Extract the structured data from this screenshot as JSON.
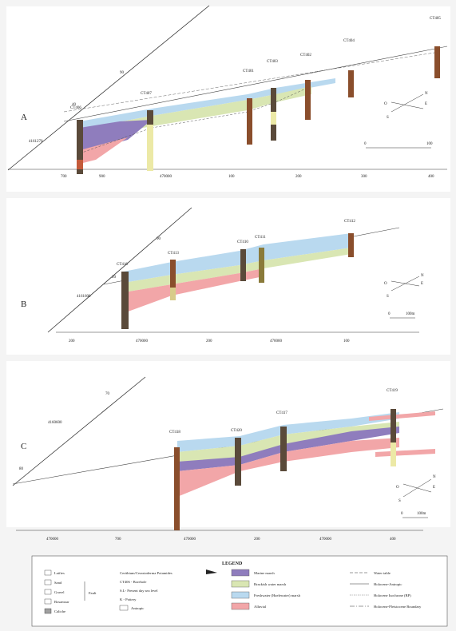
{
  "colors": {
    "marine_marsh": "#8f7dbd",
    "brackish_marsh": "#d9e6b3",
    "freshwater_marsh": "#b9d9ef",
    "alluvial": "#f2a6a8",
    "clay_dark": "#5a4a3a",
    "clay_brown": "#8a4e2c",
    "silt_tan": "#d8cc8a",
    "sand_yellow": "#ece9a6"
  },
  "sections": [
    {
      "id": "A",
      "label": "A",
      "boreholes": [
        "CT406",
        "CT407",
        "CT401",
        "CT403",
        "CT402",
        "CT404",
        "CT405"
      ],
      "axis_ticks": [
        "700",
        "900",
        "470000",
        "100",
        "200",
        "300",
        "400"
      ],
      "labels": [
        "90",
        "4161270",
        "40"
      ],
      "scale_ticks": [
        "0",
        "100"
      ],
      "compass": [
        "O",
        "E",
        "S",
        "N"
      ]
    },
    {
      "id": "B",
      "label": "B",
      "boreholes": [
        "CT416",
        "CT413",
        "CT410",
        "CT411",
        "CT412"
      ],
      "axis_ticks": [
        "200",
        "470000",
        "200",
        "470000",
        "100"
      ],
      "labels": [
        "90",
        "4161600",
        "20"
      ],
      "scale_ticks": [
        "0",
        "100m"
      ],
      "compass": [
        "O",
        "E",
        "S",
        "N"
      ]
    },
    {
      "id": "C",
      "label": "C",
      "boreholes": [
        "CT418",
        "CT420",
        "CT417",
        "CT419"
      ],
      "axis_ticks": [
        "470000",
        "700",
        "470000",
        "200",
        "470000",
        "400"
      ],
      "labels": [
        "70",
        "4160600",
        "80"
      ],
      "scale_ticks": [
        "0",
        "100m"
      ],
      "compass": [
        "O",
        "E",
        "S",
        "N"
      ]
    }
  ],
  "legend": {
    "title": "LEGEND",
    "lithology": [
      "Laifies",
      "Sand",
      "Gravel",
      "Bosamxar",
      "Caliche"
    ],
    "fault_label": "Fault",
    "symbols": [
      "Cerithium/Cerastoderma Potamides",
      "CT406 - Borehole",
      "S.L- Present day sea level",
      "K - Pottery",
      "Antropic"
    ],
    "facies": [
      "Marine marsh",
      "Brackish water marsh",
      "Freshwater (Haelewater) marsh",
      "Alluvial"
    ],
    "lines": [
      "Water table",
      "Holocene-Antropic",
      "Holocene Isochrone (BP)",
      "Holocene-Pleistocene Boundary"
    ]
  }
}
